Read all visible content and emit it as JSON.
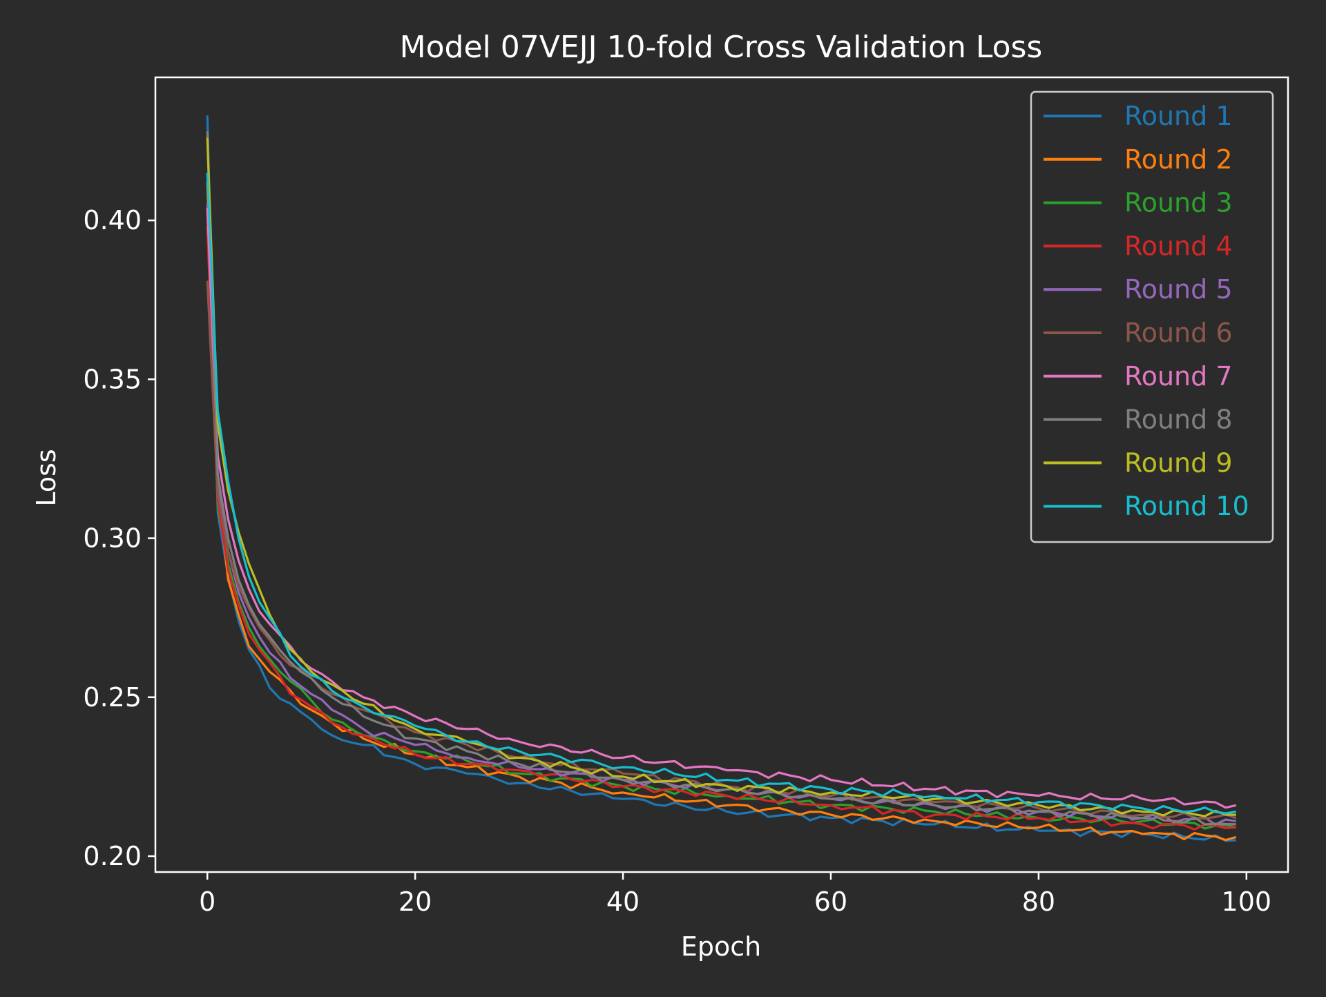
{
  "chart_data": {
    "type": "line",
    "title": "Model 07VEJJ 10-fold Cross Validation Loss",
    "xlabel": "Epoch",
    "ylabel": "Loss",
    "xlim": [
      -5,
      104
    ],
    "ylim": [
      0.195,
      0.445
    ],
    "xticks": [
      0,
      20,
      40,
      60,
      80,
      100
    ],
    "xtick_labels": [
      "0",
      "20",
      "40",
      "60",
      "80",
      "100"
    ],
    "yticks": [
      0.2,
      0.25,
      0.3,
      0.35,
      0.4
    ],
    "ytick_labels": [
      "0.20",
      "0.25",
      "0.30",
      "0.35",
      "0.40"
    ],
    "grid": false,
    "legend_position": "top-right",
    "epochs": 100,
    "series_anchor_epochs": [
      0,
      1,
      2,
      3,
      4,
      5,
      6,
      8,
      10,
      12,
      15,
      20,
      25,
      30,
      40,
      50,
      60,
      70,
      80,
      90,
      99
    ],
    "series": [
      {
        "name": "Round 1",
        "color": "#1f77b4",
        "values": [
          0.433,
          0.308,
          0.288,
          0.274,
          0.265,
          0.26,
          0.253,
          0.248,
          0.243,
          0.238,
          0.235,
          0.229,
          0.226,
          0.223,
          0.218,
          0.214,
          0.212,
          0.21,
          0.208,
          0.207,
          0.205
        ]
      },
      {
        "name": "Round 2",
        "color": "#ff7f0e",
        "values": [
          0.412,
          0.316,
          0.287,
          0.276,
          0.266,
          0.262,
          0.258,
          0.252,
          0.246,
          0.242,
          0.237,
          0.232,
          0.228,
          0.225,
          0.22,
          0.216,
          0.213,
          0.211,
          0.209,
          0.207,
          0.206
        ]
      },
      {
        "name": "Round 3",
        "color": "#2ca02c",
        "values": [
          0.403,
          0.31,
          0.292,
          0.28,
          0.272,
          0.266,
          0.262,
          0.255,
          0.249,
          0.243,
          0.238,
          0.233,
          0.23,
          0.226,
          0.222,
          0.219,
          0.216,
          0.214,
          0.212,
          0.211,
          0.209
        ]
      },
      {
        "name": "Round 4",
        "color": "#d62728",
        "values": [
          0.398,
          0.312,
          0.29,
          0.279,
          0.27,
          0.265,
          0.261,
          0.251,
          0.247,
          0.242,
          0.238,
          0.232,
          0.229,
          0.227,
          0.222,
          0.219,
          0.216,
          0.213,
          0.212,
          0.21,
          0.209
        ]
      },
      {
        "name": "Round 5",
        "color": "#9467bd",
        "values": [
          0.405,
          0.318,
          0.296,
          0.283,
          0.275,
          0.269,
          0.264,
          0.256,
          0.251,
          0.246,
          0.24,
          0.235,
          0.231,
          0.228,
          0.224,
          0.221,
          0.218,
          0.216,
          0.214,
          0.212,
          0.211
        ]
      },
      {
        "name": "Round 6",
        "color": "#8c564b",
        "values": [
          0.381,
          0.314,
          0.296,
          0.285,
          0.278,
          0.272,
          0.268,
          0.26,
          0.256,
          0.251,
          0.246,
          0.239,
          0.235,
          0.231,
          0.226,
          0.222,
          0.219,
          0.217,
          0.215,
          0.213,
          0.212
        ]
      },
      {
        "name": "Round 7",
        "color": "#e377c2",
        "values": [
          0.404,
          0.326,
          0.306,
          0.293,
          0.284,
          0.277,
          0.273,
          0.266,
          0.259,
          0.255,
          0.25,
          0.244,
          0.24,
          0.236,
          0.231,
          0.227,
          0.224,
          0.221,
          0.219,
          0.218,
          0.216
        ]
      },
      {
        "name": "Round 8",
        "color": "#7f7f7f",
        "values": [
          0.428,
          0.32,
          0.3,
          0.287,
          0.279,
          0.273,
          0.269,
          0.261,
          0.256,
          0.25,
          0.244,
          0.237,
          0.233,
          0.229,
          0.224,
          0.221,
          0.218,
          0.216,
          0.214,
          0.212,
          0.21
        ]
      },
      {
        "name": "Round 9",
        "color": "#bcbd22",
        "values": [
          0.426,
          0.336,
          0.315,
          0.302,
          0.292,
          0.284,
          0.276,
          0.265,
          0.258,
          0.254,
          0.248,
          0.24,
          0.236,
          0.231,
          0.225,
          0.222,
          0.22,
          0.218,
          0.216,
          0.214,
          0.213
        ]
      },
      {
        "name": "Round 10",
        "color": "#17becf",
        "values": [
          0.415,
          0.34,
          0.318,
          0.3,
          0.288,
          0.28,
          0.275,
          0.263,
          0.257,
          0.252,
          0.247,
          0.241,
          0.236,
          0.233,
          0.228,
          0.224,
          0.221,
          0.219,
          0.217,
          0.215,
          0.214
        ]
      }
    ]
  },
  "colors": {
    "background": "#2b2b2b",
    "foreground": "#ffffff",
    "legend_frame": "#cccccc"
  }
}
